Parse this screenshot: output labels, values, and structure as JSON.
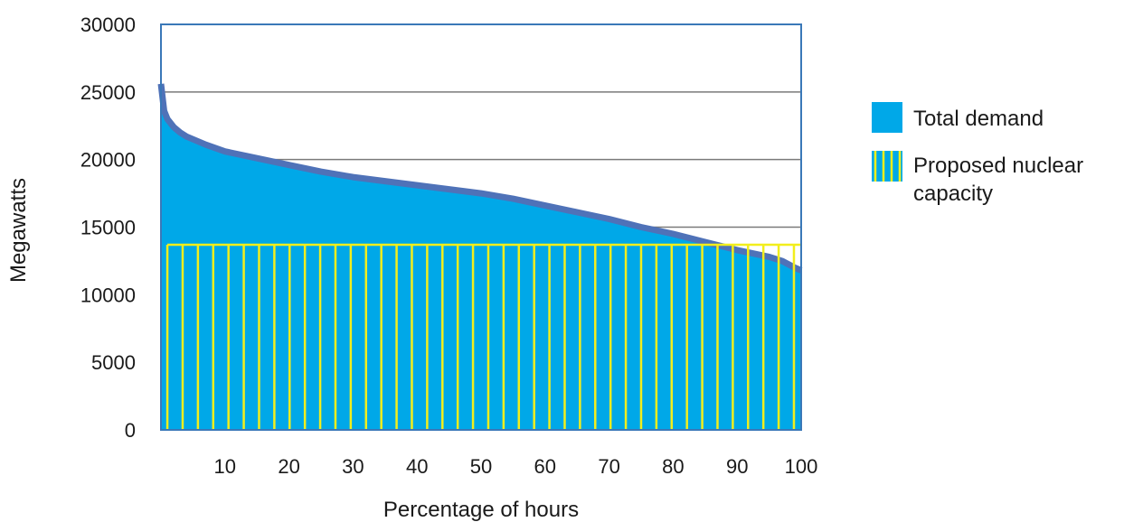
{
  "colors": {
    "demand_fill": "#00a8e8",
    "demand_edge": "#4f72b8",
    "nuclear_line": "#f2ee1c",
    "grid": "#7a7a7a",
    "frame": "#3a78b8"
  },
  "chart_data": {
    "type": "area",
    "title": "",
    "xlabel": "Percentage of hours",
    "ylabel": "Megawatts",
    "xlim": [
      0,
      100
    ],
    "ylim": [
      0,
      30000
    ],
    "x_ticks": [
      "10",
      "20",
      "30",
      "40",
      "50",
      "60",
      "70",
      "80",
      "90",
      "100"
    ],
    "y_ticks": [
      "0",
      "5000",
      "10000",
      "15000",
      "20000",
      "25000",
      "30000"
    ],
    "grid": "horizontal",
    "legend_position": "right",
    "series": [
      {
        "name": "Total demand",
        "x": [
          0,
          0.5,
          1,
          2,
          3,
          4,
          5,
          7,
          10,
          15,
          20,
          25,
          30,
          35,
          40,
          45,
          50,
          55,
          60,
          65,
          70,
          75,
          80,
          85,
          90,
          92,
          95,
          97,
          99,
          100
        ],
        "values": [
          25800,
          23800,
          23200,
          22600,
          22200,
          21900,
          21700,
          21300,
          20800,
          20300,
          19800,
          19300,
          18900,
          18600,
          18300,
          18000,
          17700,
          17300,
          16800,
          16300,
          15800,
          15200,
          14700,
          14100,
          13500,
          13300,
          13000,
          12700,
          12200,
          12000
        ]
      },
      {
        "name": "Proposed nuclear capacity",
        "value": 13700,
        "x_range": [
          1,
          100
        ]
      }
    ]
  },
  "legend": [
    {
      "label": "Total demand"
    },
    {
      "label_line1": "Proposed nuclear",
      "label_line2": "capacity"
    }
  ]
}
